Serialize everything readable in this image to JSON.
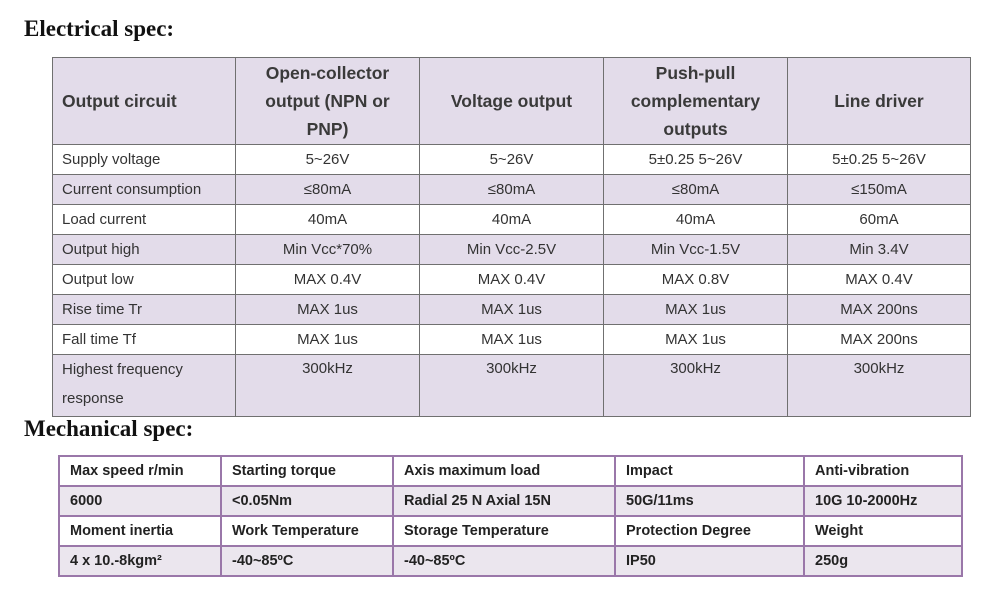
{
  "electrical": {
    "title": "Electrical spec:",
    "headers": [
      "Output circuit",
      "Open-collector output (NPN or PNP)",
      "Voltage output",
      "Push-pull complementary outputs",
      "Line driver"
    ],
    "rows": [
      [
        "Supply voltage",
        "5~26V",
        "5~26V",
        "5±0.25   5~26V",
        "5±0.25   5~26V"
      ],
      [
        "Current consumption",
        "≤80mA",
        "≤80mA",
        "≤80mA",
        "≤150mA"
      ],
      [
        "Load current",
        "40mA",
        "40mA",
        "40mA",
        "60mA"
      ],
      [
        "Output high",
        "Min Vcc*70%",
        "Min Vcc-2.5V",
        "Min Vcc-1.5V",
        "Min 3.4V"
      ],
      [
        "Output low",
        "MAX 0.4V",
        "MAX 0.4V",
        "MAX 0.8V",
        "MAX 0.4V"
      ],
      [
        "Rise time Tr",
        "MAX 1us",
        "MAX 1us",
        "MAX 1us",
        "MAX 200ns"
      ],
      [
        "Fall time Tf",
        "MAX 1us",
        "MAX 1us",
        "MAX 1us",
        "MAX 200ns"
      ],
      [
        "Highest frequency response",
        "300kHz",
        "300kHz",
        "300kHz",
        "300kHz"
      ]
    ]
  },
  "mechanical": {
    "title": "Mechanical spec:",
    "rows": [
      [
        "Max speed r/min",
        "Starting torque",
        "Axis maximum load",
        "Impact",
        "Anti-vibration"
      ],
      [
        "6000",
        "<0.05Nm",
        "Radial 25 N Axial 15N",
        "50G/11ms",
        "10G   10-2000Hz"
      ],
      [
        "Moment inertia",
        "Work Temperature",
        "Storage Temperature",
        "Protection Degree",
        "Weight"
      ],
      [
        "4 x 10.-8kgm²",
        "-40~85ºC",
        "-40~85ºC",
        "IP50",
        "250g"
      ]
    ]
  },
  "colors": {
    "header_shade": "#e3dcea",
    "mech_border": "#9a77a9",
    "mech_value_shade": "#ebe6ee"
  }
}
